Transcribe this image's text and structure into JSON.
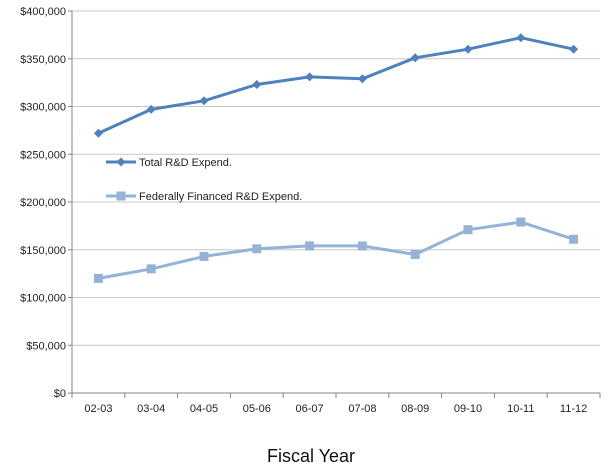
{
  "chart_data": {
    "type": "line",
    "title": "",
    "xlabel": "Fiscal Year",
    "ylabel": "",
    "categories": [
      "02-03",
      "03-04",
      "04-05",
      "05-06",
      "06-07",
      "07-08",
      "08-09",
      "09-10",
      "10-11",
      "11-12"
    ],
    "ylim": [
      0,
      400000
    ],
    "yticks": [
      0,
      50000,
      100000,
      150000,
      200000,
      250000,
      300000,
      350000,
      400000
    ],
    "ytick_labels": [
      "$0",
      "$50,000",
      "$100,000",
      "$150,000",
      "$200,000",
      "$250,000",
      "$300,000",
      "$350,000",
      "$400,000"
    ],
    "grid": true,
    "legend_position": "inside-left",
    "series": [
      {
        "name": "Total R&D Expend.",
        "color": "#4F81BD",
        "marker": "diamond",
        "values": [
          272000,
          297000,
          306000,
          323000,
          331000,
          329000,
          351000,
          360000,
          372000,
          360000
        ]
      },
      {
        "name": "Federally Financed R&D Expend.",
        "color": "#95B3D7",
        "marker": "square",
        "values": [
          120000,
          130000,
          143000,
          151000,
          154000,
          154000,
          145000,
          171000,
          179000,
          161000
        ]
      }
    ]
  }
}
